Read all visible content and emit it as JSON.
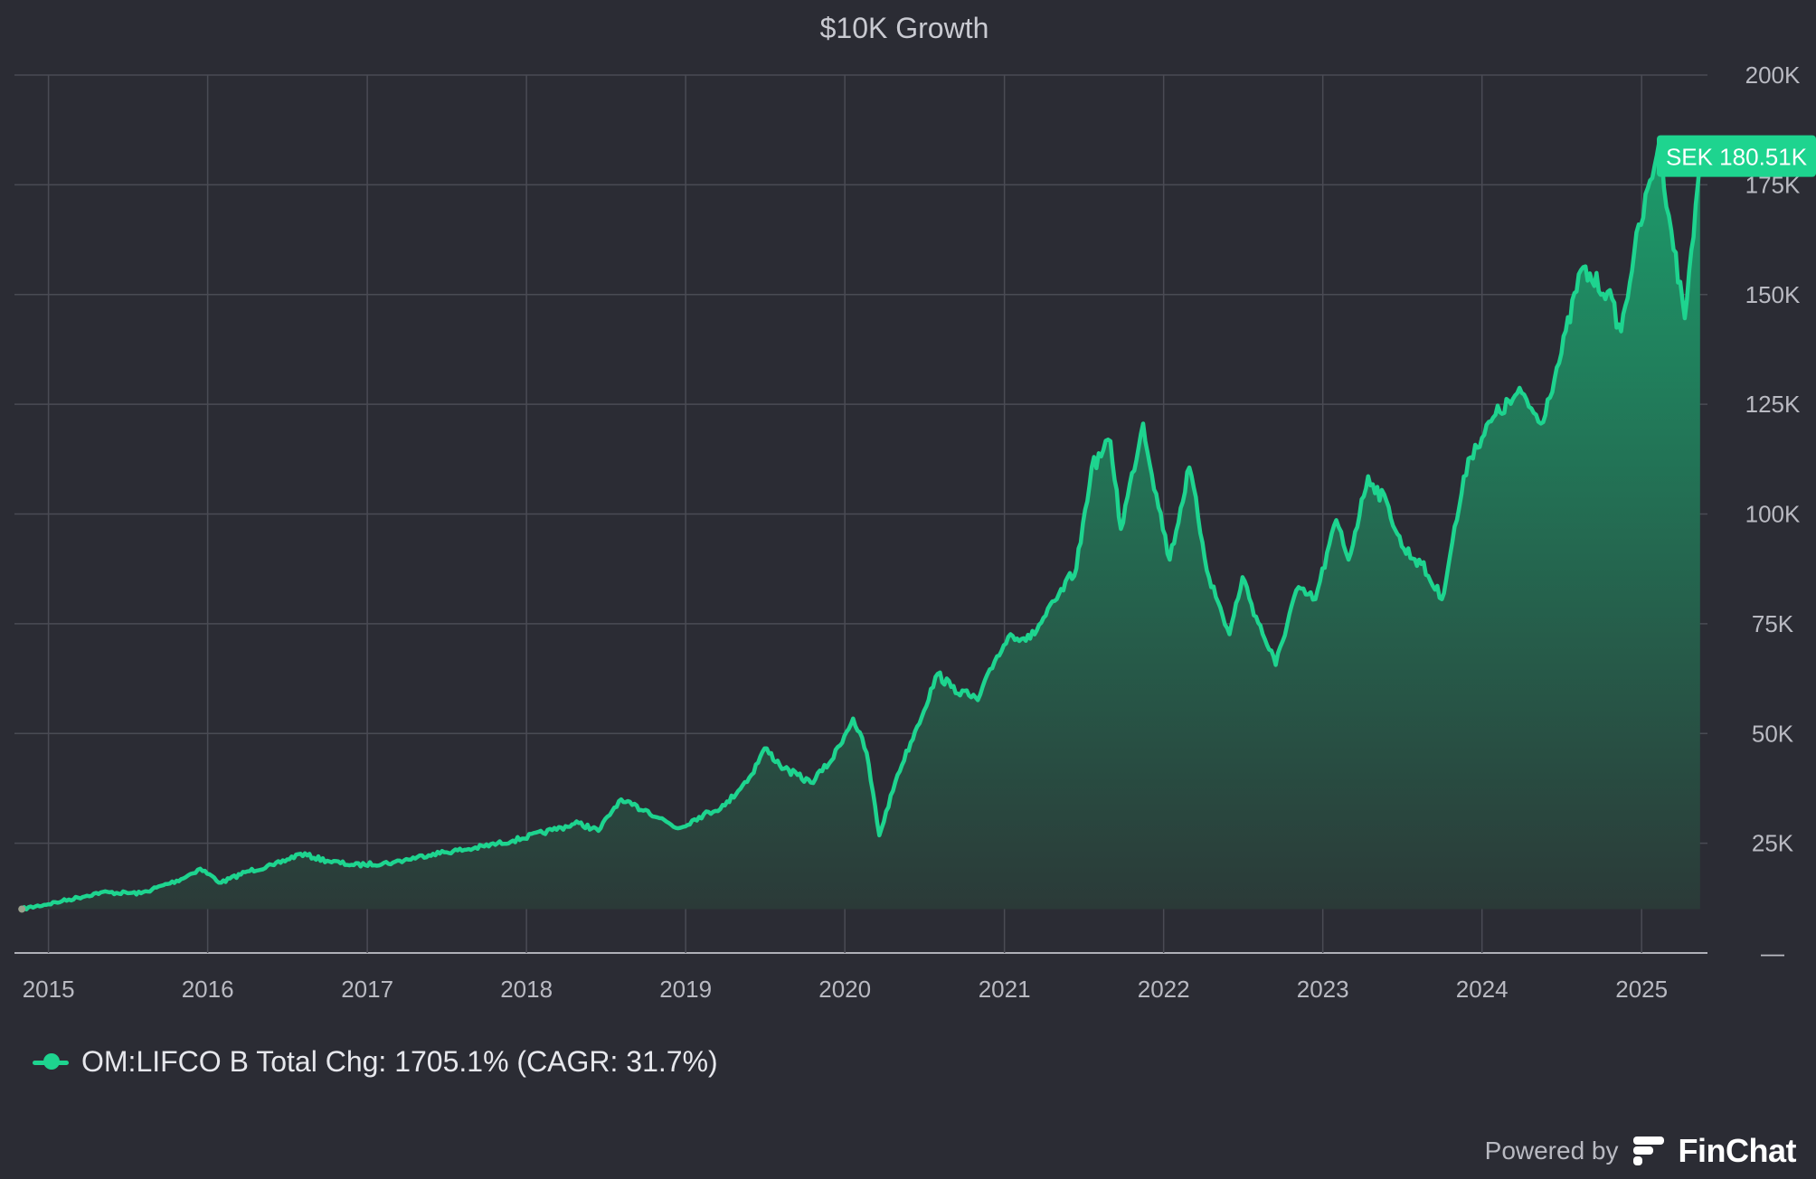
{
  "chart_data": {
    "type": "area",
    "title": "$10K Growth",
    "xlabel": "",
    "ylabel": "",
    "x_ticks": [
      "2015",
      "2016",
      "2017",
      "2018",
      "2019",
      "2020",
      "2021",
      "2022",
      "2023",
      "2024",
      "2025"
    ],
    "y_ticks": [
      "—",
      "25K",
      "50K",
      "75K",
      "100K",
      "125K",
      "150K",
      "175K",
      "200K"
    ],
    "ylim": [
      0,
      200000
    ],
    "xlim": [
      "2014-10-15",
      "2025-06-01"
    ],
    "grid": true,
    "legend_position": "bottom-left",
    "series": [
      {
        "name": "OM:LIFCO B",
        "points": [
          [
            "2014-11-01",
            10000
          ],
          [
            "2015-02-01",
            11800
          ],
          [
            "2015-05-01",
            13800
          ],
          [
            "2015-08-01",
            13600
          ],
          [
            "2015-11-01",
            16800
          ],
          [
            "2015-12-15",
            19200
          ],
          [
            "2016-02-01",
            16000
          ],
          [
            "2016-04-01",
            18600
          ],
          [
            "2016-06-01",
            20000
          ],
          [
            "2016-08-01",
            22600
          ],
          [
            "2016-10-01",
            21000
          ],
          [
            "2016-12-01",
            20000
          ],
          [
            "2017-03-01",
            20600
          ],
          [
            "2017-06-01",
            22600
          ],
          [
            "2017-09-01",
            23800
          ],
          [
            "2017-12-01",
            25600
          ],
          [
            "2018-03-01",
            28000
          ],
          [
            "2018-05-01",
            29600
          ],
          [
            "2018-06-15",
            27800
          ],
          [
            "2018-08-01",
            34600
          ],
          [
            "2018-10-01",
            32600
          ],
          [
            "2018-12-15",
            28400
          ],
          [
            "2019-02-01",
            31000
          ],
          [
            "2019-04-01",
            33600
          ],
          [
            "2019-06-01",
            40600
          ],
          [
            "2019-07-01",
            46600
          ],
          [
            "2019-08-15",
            42000
          ],
          [
            "2019-10-15",
            38800
          ],
          [
            "2019-12-01",
            43800
          ],
          [
            "2020-01-20",
            53400
          ],
          [
            "2020-02-20",
            45600
          ],
          [
            "2020-03-20",
            26800
          ],
          [
            "2020-05-01",
            40600
          ],
          [
            "2020-06-15",
            51600
          ],
          [
            "2020-08-01",
            63600
          ],
          [
            "2020-09-01",
            60600
          ],
          [
            "2020-11-01",
            57600
          ],
          [
            "2020-12-15",
            67600
          ],
          [
            "2021-01-15",
            72600
          ],
          [
            "2021-03-01",
            71600
          ],
          [
            "2021-05-01",
            80600
          ],
          [
            "2021-06-15",
            87600
          ],
          [
            "2021-07-20",
            110600
          ],
          [
            "2021-09-01",
            116600
          ],
          [
            "2021-09-25",
            96600
          ],
          [
            "2021-11-15",
            120600
          ],
          [
            "2021-12-15",
            104600
          ],
          [
            "2022-01-15",
            89600
          ],
          [
            "2022-03-01",
            110600
          ],
          [
            "2022-04-15",
            85600
          ],
          [
            "2022-06-01",
            72600
          ],
          [
            "2022-07-01",
            85600
          ],
          [
            "2022-08-01",
            76600
          ],
          [
            "2022-09-15",
            65600
          ],
          [
            "2022-11-01",
            82600
          ],
          [
            "2022-12-15",
            80600
          ],
          [
            "2023-02-01",
            98600
          ],
          [
            "2023-03-01",
            89600
          ],
          [
            "2023-04-15",
            108600
          ],
          [
            "2023-06-01",
            101600
          ],
          [
            "2023-07-01",
            92600
          ],
          [
            "2023-08-15",
            88600
          ],
          [
            "2023-10-01",
            80600
          ],
          [
            "2023-10-25",
            93600
          ],
          [
            "2023-12-01",
            112600
          ],
          [
            "2024-02-01",
            122600
          ],
          [
            "2024-04-01",
            127600
          ],
          [
            "2024-05-15",
            120600
          ],
          [
            "2024-07-01",
            136600
          ],
          [
            "2024-08-15",
            155600
          ],
          [
            "2024-10-15",
            150600
          ],
          [
            "2024-11-15",
            141600
          ],
          [
            "2024-12-15",
            159600
          ],
          [
            "2025-02-10",
            184600
          ],
          [
            "2025-03-10",
            164600
          ],
          [
            "2025-04-10",
            144600
          ],
          [
            "2025-05-15",
            180510
          ]
        ]
      }
    ],
    "last_value_label": "SEK 180.51K"
  },
  "legend": {
    "label": "OM:LIFCO B Total Chg: 1705.1% (CAGR: 31.7%)"
  },
  "branding": {
    "powered_by": "Powered by",
    "name": "FinChat"
  },
  "colors": {
    "background": "#2b2c34",
    "grid": "#4a4b54",
    "line": "#1ed48f",
    "fill_top": "#1c9c6b",
    "fill_bottom": "#2b3a38",
    "axis": "#b0b1b8"
  }
}
